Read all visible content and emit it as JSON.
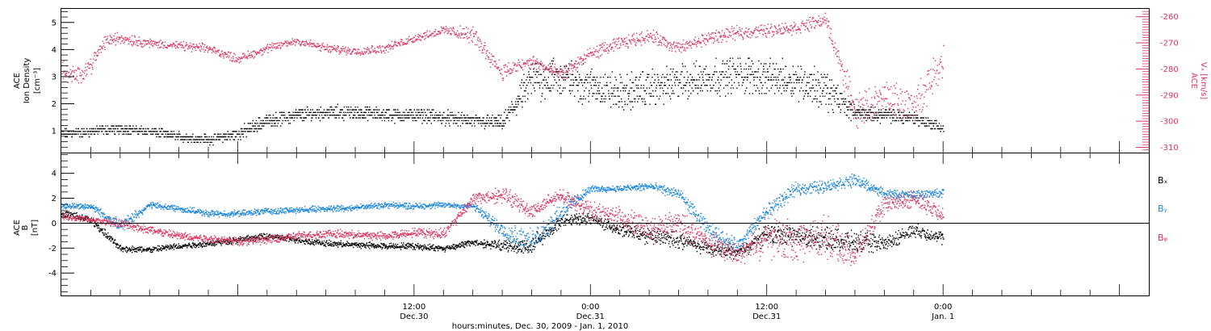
{
  "figure": {
    "xlabel": "hours:minutes, Dec. 30, 2009 - Jan.  1, 2010",
    "x_ticks": [
      {
        "time": "12:00",
        "date": "Dec.30",
        "hour": 12
      },
      {
        "time": "0:00",
        "date": "Dec.31",
        "hour": 24
      },
      {
        "time": "12:00",
        "date": "Dec.31",
        "hour": 36
      },
      {
        "time": "0:00",
        "date": "Jan.  1",
        "hour": 48
      }
    ]
  },
  "colors": {
    "black": "#000000",
    "red": "#e0335f",
    "blue": "#1a86e0"
  },
  "chart_data": [
    {
      "type": "scatter",
      "panel": "top",
      "x_unit": "hours since Dec. 30, 2009 00:00",
      "xlim": [
        -12,
        62
      ],
      "left_axis": {
        "label_line1": "ACE",
        "label_line2": "Ion Density",
        "label_line3": "[cm⁻³]",
        "ylim": [
          0.2,
          5.5
        ],
        "ticks": [
          "1",
          "2",
          "3",
          "4",
          "5"
        ]
      },
      "right_axis": {
        "label_line1": "ACE",
        "label_line2": "Vₓ [km/s]",
        "ylim": [
          -312,
          -257
        ],
        "ticks": [
          "-260",
          "-270",
          "-280",
          "-290",
          "-300",
          "-310"
        ]
      },
      "series": [
        {
          "axis": "left",
          "color": "black",
          "x": [
            -12,
            -10,
            -8,
            -6,
            -4,
            -2,
            0,
            2,
            4,
            6,
            8,
            10,
            12,
            14,
            16,
            18,
            20,
            22,
            24,
            26,
            28,
            30,
            32,
            34,
            36,
            38,
            40,
            42,
            44,
            46,
            48
          ],
          "y": [
            0.9,
            1.0,
            1.1,
            1.0,
            0.8,
            0.7,
            0.9,
            1.4,
            1.6,
            1.7,
            1.7,
            1.6,
            1.6,
            1.5,
            1.4,
            1.3,
            2.9,
            3.0,
            2.7,
            2.4,
            2.6,
            2.8,
            3.0,
            3.1,
            3.0,
            2.9,
            2.5,
            1.7,
            1.6,
            1.5,
            1.1
          ],
          "spread": [
            0.2,
            0.2,
            0.2,
            0.2,
            0.2,
            0.2,
            0.3,
            0.3,
            0.3,
            0.3,
            0.3,
            0.3,
            0.3,
            0.3,
            0.3,
            0.3,
            0.9,
            0.9,
            0.8,
            0.8,
            0.8,
            0.8,
            0.8,
            0.8,
            0.8,
            0.8,
            0.9,
            0.3,
            0.3,
            0.3,
            0.2
          ]
        },
        {
          "axis": "right",
          "color": "red",
          "x": [
            -12,
            -11,
            -10,
            -9,
            -8,
            -6,
            -4,
            -2,
            0,
            2,
            4,
            6,
            8,
            10,
            12,
            14,
            16,
            18,
            20,
            22,
            24,
            26,
            28,
            30,
            32,
            34,
            36,
            38,
            40,
            42,
            44,
            46,
            48
          ],
          "y": [
            -280,
            -283,
            -278,
            -269,
            -268,
            -270,
            -271,
            -272,
            -276,
            -272,
            -269,
            -272,
            -273,
            -272,
            -268,
            -265,
            -267,
            -281,
            -277,
            -282,
            -274,
            -270,
            -267,
            -272,
            -268,
            -266,
            -265,
            -264,
            -261,
            -296,
            -291,
            -294,
            -276
          ],
          "spread": [
            5,
            4,
            4,
            3,
            3,
            2,
            2,
            2,
            2,
            2,
            2,
            2,
            2,
            2,
            2,
            2,
            4,
            4,
            3,
            3,
            3,
            3,
            3,
            3,
            3,
            3,
            3,
            3,
            3,
            8,
            8,
            8,
            8
          ]
        }
      ]
    },
    {
      "type": "scatter",
      "panel": "bottom",
      "x_unit": "hours since Dec. 30, 2009 00:00",
      "xlim": [
        -12,
        62
      ],
      "ylabel_line1": "ACE",
      "ylabel_line2": "B",
      "ylabel_line3": "[nT]",
      "ylim": [
        -5.8,
        5.6
      ],
      "ticks": [
        "4",
        "2",
        "0",
        "-2",
        "-4"
      ],
      "zero_line": true,
      "legend": [
        {
          "label": "Bₓ",
          "color": "black"
        },
        {
          "label": "Bᵧ",
          "color": "blue"
        },
        {
          "label": "Bᵩ",
          "color": "red"
        }
      ],
      "series": [
        {
          "label": "Bₓ",
          "color": "black",
          "x": [
            -12,
            -10,
            -8,
            -6,
            -4,
            -2,
            0,
            2,
            4,
            6,
            8,
            10,
            12,
            14,
            16,
            18,
            20,
            22,
            24,
            26,
            28,
            30,
            32,
            34,
            36,
            38,
            40,
            42,
            44,
            46,
            48
          ],
          "y": [
            0.8,
            0.3,
            -2.0,
            -2.1,
            -1.8,
            -1.6,
            -1.3,
            -1.0,
            -1.3,
            -1.6,
            -1.7,
            -1.8,
            -1.8,
            -2.0,
            -1.5,
            -1.8,
            -1.8,
            0.3,
            0.4,
            -0.5,
            -1.0,
            -1.3,
            -2.0,
            -2.3,
            -0.8,
            -1.0,
            -1.2,
            -1.5,
            -1.6,
            -0.5,
            -1.2
          ],
          "spread": [
            0.4,
            0.4,
            0.3,
            0.3,
            0.3,
            0.3,
            0.3,
            0.3,
            0.3,
            0.3,
            0.3,
            0.3,
            0.3,
            0.3,
            0.3,
            0.5,
            1.0,
            0.5,
            0.5,
            0.6,
            0.8,
            0.8,
            0.6,
            0.6,
            1.0,
            1.0,
            1.0,
            1.0,
            0.8,
            0.6,
            0.6
          ]
        },
        {
          "label": "Bᵧ",
          "color": "blue",
          "x": [
            -12,
            -10,
            -8,
            -6,
            -4,
            -2,
            0,
            2,
            4,
            6,
            8,
            10,
            12,
            14,
            16,
            18,
            20,
            22,
            24,
            26,
            28,
            30,
            32,
            34,
            36,
            38,
            40,
            42,
            44,
            46,
            48
          ],
          "y": [
            1.4,
            1.4,
            -0.2,
            1.5,
            1.2,
            0.8,
            0.8,
            1.0,
            1.1,
            1.2,
            1.3,
            1.5,
            1.4,
            1.5,
            1.4,
            -0.5,
            -1.5,
            1.0,
            2.8,
            2.8,
            3.0,
            2.4,
            -0.5,
            -1.8,
            1.0,
            2.8,
            3.0,
            3.5,
            2.4,
            2.3,
            2.5
          ],
          "spread": [
            0.3,
            0.3,
            0.6,
            0.3,
            0.3,
            0.3,
            0.3,
            0.3,
            0.3,
            0.3,
            0.3,
            0.3,
            0.3,
            0.3,
            0.3,
            0.8,
            1.2,
            0.8,
            0.3,
            0.3,
            0.4,
            0.5,
            0.8,
            0.6,
            0.8,
            0.6,
            0.6,
            0.6,
            0.4,
            0.4,
            0.4
          ]
        },
        {
          "label": "Bᵩ",
          "color": "red",
          "x": [
            -12,
            -10,
            -8,
            -6,
            -4,
            -2,
            0,
            2,
            4,
            6,
            8,
            10,
            12,
            14,
            16,
            18,
            20,
            22,
            24,
            26,
            28,
            30,
            32,
            34,
            36,
            38,
            40,
            42,
            44,
            46,
            48
          ],
          "y": [
            0.6,
            0.3,
            0.0,
            -0.5,
            -1.0,
            -1.2,
            -1.4,
            -1.3,
            -1.0,
            -0.8,
            -0.9,
            -1.0,
            -0.7,
            -0.8,
            2.0,
            2.3,
            1.0,
            2.3,
            1.0,
            0.5,
            -0.5,
            0.0,
            -1.5,
            -2.5,
            -1.0,
            -1.5,
            -1.0,
            -2.5,
            1.5,
            2.0,
            0.8
          ],
          "spread": [
            0.3,
            0.3,
            0.4,
            0.4,
            0.4,
            0.4,
            0.4,
            0.4,
            0.4,
            0.4,
            0.4,
            0.4,
            0.4,
            0.5,
            0.5,
            0.8,
            0.8,
            0.6,
            0.8,
            1.0,
            1.2,
            1.2,
            1.2,
            0.8,
            2.0,
            2.0,
            2.0,
            1.2,
            0.8,
            0.8,
            0.8
          ]
        }
      ]
    }
  ]
}
